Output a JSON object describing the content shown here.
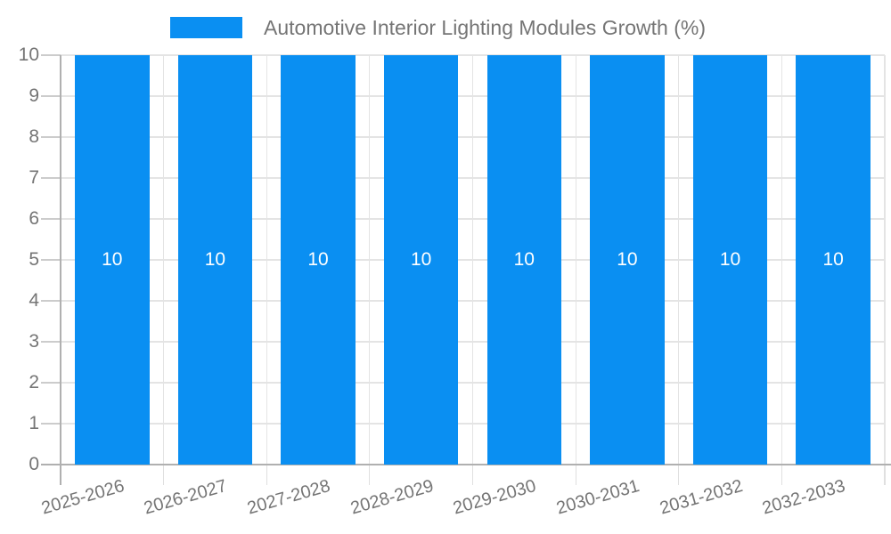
{
  "chart_data": {
    "type": "bar",
    "title": "Automotive Interior Lighting Modules Growth (%)",
    "categories": [
      "2025-2026",
      "2026-2027",
      "2027-2028",
      "2028-2029",
      "2029-2030",
      "2030-2031",
      "2031-2032",
      "2032-2033"
    ],
    "values": [
      10,
      10,
      10,
      10,
      10,
      10,
      10,
      10
    ],
    "value_labels": [
      "10",
      "10",
      "10",
      "10",
      "10",
      "10",
      "10",
      "10"
    ],
    "xlabel": "",
    "ylabel": "",
    "ylim": [
      0,
      10
    ],
    "yticks": [
      0,
      1,
      2,
      3,
      4,
      5,
      6,
      7,
      8,
      9,
      10
    ],
    "grid": true,
    "legend_position": "top",
    "colors": {
      "bar": "#0a8ff2",
      "axis_text": "#757575",
      "grid_line": "#e4e4e4",
      "axis_line": "#b0b0b0",
      "tick_line": "#cccccc",
      "x_tick_line": "#e0e0e0",
      "value_label_text": "#ffffff",
      "background": "#ffffff"
    }
  }
}
